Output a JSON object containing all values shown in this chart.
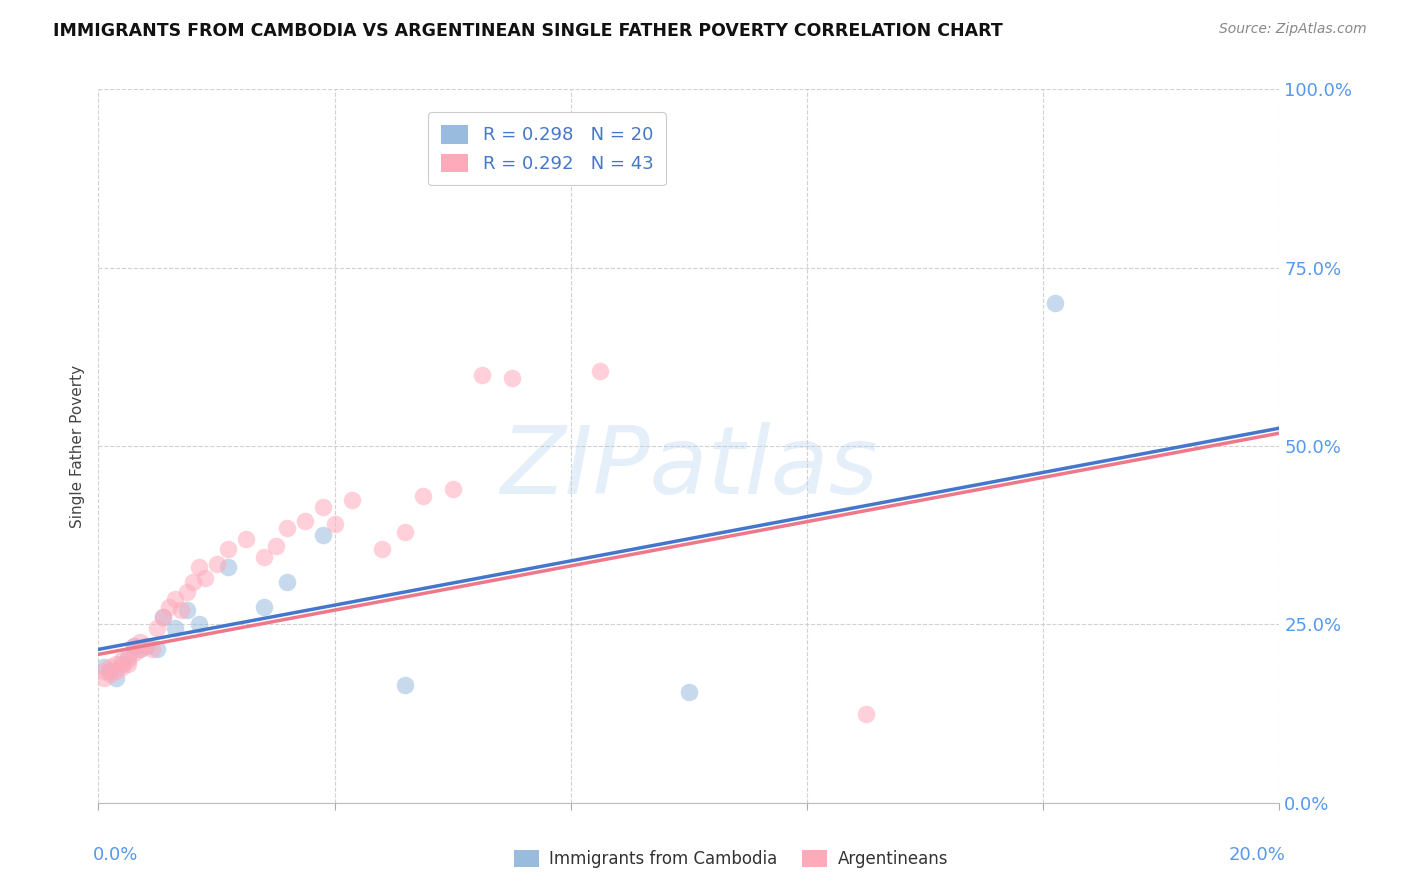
{
  "title": "IMMIGRANTS FROM CAMBODIA VS ARGENTINEAN SINGLE FATHER POVERTY CORRELATION CHART",
  "source": "Source: ZipAtlas.com",
  "ylabel": "Single Father Poverty",
  "ytick_vals": [
    0.0,
    0.25,
    0.5,
    0.75,
    1.0
  ],
  "ytick_labels": [
    "0.0%",
    "25.0%",
    "50.0%",
    "75.0%",
    "100.0%"
  ],
  "xlim": [
    0.0,
    0.2
  ],
  "ylim": [
    0.0,
    1.0
  ],
  "legend1_R": "0.298",
  "legend1_N": "20",
  "legend2_R": "0.292",
  "legend2_N": "43",
  "color_blue": "#99BBDD",
  "color_pink": "#FFAABB",
  "trendline_blue": "#4477CC",
  "trendline_pink": "#EE7788",
  "watermark_text": "ZIPatlas",
  "cam_x": [
    0.001,
    0.002,
    0.003,
    0.004,
    0.005,
    0.006,
    0.007,
    0.008,
    0.01,
    0.011,
    0.013,
    0.015,
    0.017,
    0.022,
    0.028,
    0.032,
    0.038,
    0.052,
    0.1,
    0.162
  ],
  "cam_y": [
    0.19,
    0.185,
    0.175,
    0.195,
    0.205,
    0.22,
    0.215,
    0.22,
    0.215,
    0.26,
    0.245,
    0.27,
    0.25,
    0.33,
    0.275,
    0.31,
    0.375,
    0.165,
    0.155,
    0.7
  ],
  "arg_x": [
    0.001,
    0.001,
    0.002,
    0.002,
    0.003,
    0.003,
    0.004,
    0.004,
    0.005,
    0.005,
    0.006,
    0.006,
    0.007,
    0.007,
    0.008,
    0.009,
    0.01,
    0.011,
    0.012,
    0.013,
    0.014,
    0.015,
    0.016,
    0.017,
    0.018,
    0.02,
    0.022,
    0.025,
    0.028,
    0.03,
    0.032,
    0.035,
    0.038,
    0.04,
    0.043,
    0.048,
    0.052,
    0.055,
    0.06,
    0.065,
    0.07,
    0.085,
    0.13
  ],
  "arg_y": [
    0.185,
    0.175,
    0.19,
    0.18,
    0.195,
    0.185,
    0.2,
    0.19,
    0.2,
    0.195,
    0.21,
    0.22,
    0.215,
    0.225,
    0.22,
    0.215,
    0.245,
    0.26,
    0.275,
    0.285,
    0.27,
    0.295,
    0.31,
    0.33,
    0.315,
    0.335,
    0.355,
    0.37,
    0.345,
    0.36,
    0.385,
    0.395,
    0.415,
    0.39,
    0.425,
    0.355,
    0.38,
    0.43,
    0.44,
    0.6,
    0.595,
    0.605,
    0.125
  ],
  "trend_x0": 0.0,
  "trend_x1": 0.2,
  "trend_cam_y0": 0.215,
  "trend_cam_y1": 0.525,
  "trend_arg_y0": 0.208,
  "trend_arg_y1": 0.518
}
